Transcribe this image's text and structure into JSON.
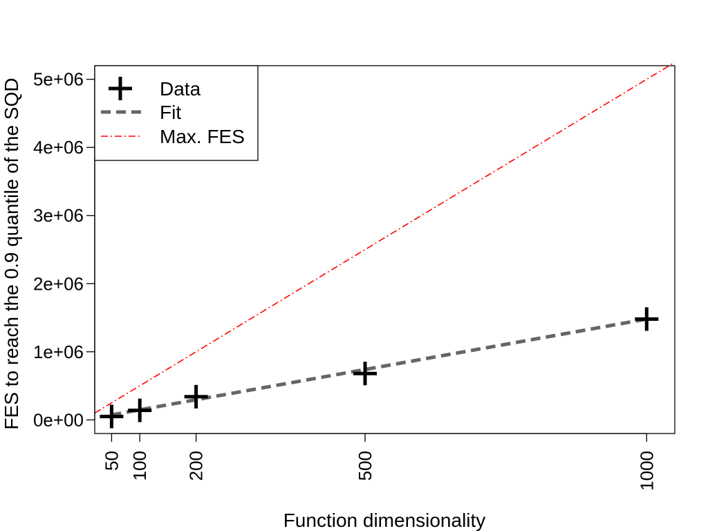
{
  "chart_data": {
    "type": "scatter",
    "xlabel": "Function dimensionality",
    "ylabel": "FES to reach the 0.9 quantile of the SQD",
    "xlim": [
      20,
      1050
    ],
    "ylim": [
      -200000,
      5200000
    ],
    "x_ticks": [
      50,
      100,
      200,
      500,
      1000
    ],
    "x_tick_labels": [
      "50",
      "100",
      "200",
      "500",
      "1000"
    ],
    "y_ticks": [
      0,
      1000000,
      2000000,
      3000000,
      4000000,
      5000000
    ],
    "y_tick_labels": [
      "0e+00",
      "1e+06",
      "2e+06",
      "3e+06",
      "4e+06",
      "5e+06"
    ],
    "grid": false,
    "legend_position": "top-left",
    "legend": [
      "Data",
      "Fit",
      "Max. FES"
    ],
    "series": [
      {
        "name": "Data",
        "marker": "plus",
        "color": "#000000",
        "x": [
          50,
          100,
          200,
          500,
          1000
        ],
        "y": [
          50000,
          140000,
          340000,
          680000,
          1480000
        ]
      },
      {
        "name": "Fit",
        "style": "dashed",
        "color": "#666666",
        "x": [
          50,
          1000
        ],
        "y": [
          74000,
          1480000
        ]
      },
      {
        "name": "Max. FES",
        "style": "dotdash",
        "color": "#ff0000",
        "x": [
          20,
          1050
        ],
        "y": [
          100000,
          5250000
        ]
      }
    ]
  }
}
